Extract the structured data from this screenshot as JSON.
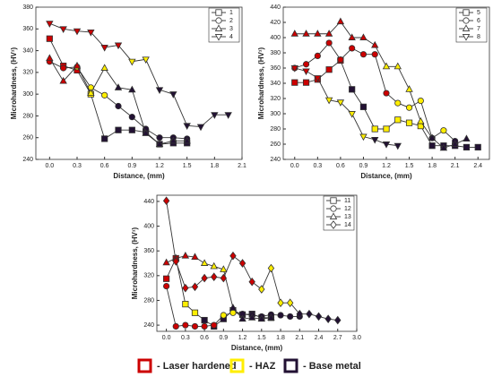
{
  "chart_data": [
    {
      "type": "line",
      "xlabel": "Distance, (mm)",
      "ylabel": "Microhardness, (HV¹)",
      "xlim": [
        -0.15,
        2.1
      ],
      "ylim": [
        240,
        380
      ],
      "xticks": [
        {
          "value": 0,
          "label": "0.0"
        },
        0.3,
        0.6,
        0.9,
        1.2,
        1.5,
        1.8,
        2.1
      ],
      "yticks": [
        240,
        260,
        280,
        300,
        320,
        340,
        360,
        380
      ],
      "legend": "upper right",
      "x": [
        0,
        0.15,
        0.3,
        0.45,
        0.6,
        0.75,
        0.9,
        1.05,
        1.2,
        1.35,
        1.5,
        1.65,
        1.8,
        1.95
      ],
      "series": [
        {
          "name": "1",
          "marker": "square",
          "color": "#333",
          "values": [
            351,
            326,
            322,
            300,
            259,
            267,
            267,
            265,
            254,
            255,
            255,
            null,
            null,
            null
          ],
          "marker_colors": [
            "#c00",
            "#c00",
            "#c00",
            "#fe0",
            "#213",
            "#213",
            "#213",
            "#213",
            "#213",
            "#213",
            "#213",
            null,
            null,
            null
          ]
        },
        {
          "name": "2",
          "marker": "circle",
          "color": "#333",
          "values": [
            330,
            324,
            325,
            306,
            299,
            289,
            279,
            268,
            260,
            260,
            259,
            null,
            null,
            null
          ],
          "marker_colors": [
            "#c00",
            "#c00",
            "#fe0",
            "#fe0",
            "#fe0",
            "#213",
            "#213",
            "#213",
            "#213",
            "#213",
            "#213",
            null,
            null,
            null
          ]
        },
        {
          "name": "3",
          "marker": "triangle-up",
          "color": "#333",
          "values": [
            333,
            312,
            326,
            301,
            324,
            306,
            304,
            264,
            254,
            257,
            257,
            null,
            null,
            null
          ],
          "marker_colors": [
            "#c00",
            "#c00",
            "#c00",
            "#fe0",
            "#fe0",
            "#213",
            "#213",
            "#213",
            "#213",
            "#213",
            "#213",
            null,
            null,
            null
          ]
        },
        {
          "name": "4",
          "marker": "triangle-down",
          "color": "#333",
          "values": [
            365,
            360,
            358,
            357,
            343,
            345,
            330,
            332,
            304,
            300,
            271,
            270,
            281,
            281
          ],
          "marker_colors": [
            "#c00",
            "#c00",
            "#c00",
            "#c00",
            "#c00",
            "#c00",
            "#fe0",
            "#fe0",
            "#213",
            "#213",
            "#213",
            "#213",
            "#213",
            "#213"
          ]
        }
      ]
    },
    {
      "type": "line",
      "xlabel": "Distance, (mm)",
      "ylabel": "Microhardness, (HV¹)",
      "xlim": [
        -0.15,
        2.55
      ],
      "ylim": [
        240,
        440
      ],
      "xticks": [
        {
          "value": 0,
          "label": "0.0"
        },
        0.3,
        0.6,
        0.9,
        1.2,
        1.5,
        1.8,
        2.1,
        2.4
      ],
      "yticks": [
        240,
        260,
        280,
        300,
        320,
        340,
        360,
        380,
        400,
        420,
        440
      ],
      "legend": "upper right",
      "x": [
        0,
        0.15,
        0.3,
        0.45,
        0.6,
        0.75,
        0.9,
        1.05,
        1.2,
        1.35,
        1.5,
        1.65,
        1.8,
        1.95,
        2.1,
        2.25,
        2.4
      ],
      "series": [
        {
          "name": "5",
          "marker": "square",
          "color": "#333",
          "values": [
            341,
            341,
            345,
            358,
            370,
            332,
            309,
            280,
            280,
            292,
            288,
            284,
            258,
            258,
            258,
            256,
            256
          ],
          "marker_colors": [
            "#c00",
            "#c00",
            "#c00",
            "#c00",
            "#c00",
            "#213",
            "#213",
            "#fe0",
            "#fe0",
            "#fe0",
            "#fe0",
            "#fe0",
            "#213",
            "#213",
            "#213",
            "#213",
            "#213"
          ]
        },
        {
          "name": "6",
          "marker": "circle",
          "color": "#333",
          "values": [
            360,
            365,
            376,
            393,
            371,
            386,
            378,
            378,
            327,
            314,
            308,
            317,
            268,
            278,
            264,
            null,
            null
          ],
          "marker_colors": [
            "#c00",
            "#c00",
            "#c00",
            "#c00",
            "#c00",
            "#c00",
            "#c00",
            "#c00",
            "#c00",
            "#fe0",
            "#fe0",
            "#fe0",
            "#213",
            "#fe0",
            "#213",
            null,
            null
          ]
        },
        {
          "name": "7",
          "marker": "triangle-up",
          "color": "#333",
          "values": [
            405,
            405,
            405,
            405,
            421,
            400,
            400,
            390,
            362,
            362,
            332,
            290,
            268,
            255,
            260,
            267,
            null
          ],
          "marker_colors": [
            "#c00",
            "#c00",
            "#c00",
            "#c00",
            "#c00",
            "#c00",
            "#c00",
            "#c00",
            "#fe0",
            "#fe0",
            "#fe0",
            "#fe0",
            "#213",
            "#213",
            "#213",
            "#213",
            null
          ]
        },
        {
          "name": "8",
          "marker": "triangle-down",
          "color": "#333",
          "values": [
            360,
            356,
            347,
            318,
            315,
            300,
            270,
            266,
            260,
            258,
            null,
            null,
            null,
            null,
            null,
            null,
            null
          ],
          "marker_colors": [
            "#c00",
            "#c00",
            "#c00",
            "#fe0",
            "#fe0",
            "#fe0",
            "#fe0",
            "#213",
            "#213",
            "#213",
            null,
            null,
            null,
            null,
            null,
            null,
            null
          ]
        }
      ]
    },
    {
      "type": "line",
      "xlabel": "Distance, (mm)",
      "ylabel": "Microhardness, (HV¹)",
      "xlim": [
        -0.15,
        3.0
      ],
      "ylim": [
        230,
        450
      ],
      "xticks": [
        {
          "value": 0,
          "label": "0.0"
        },
        0.3,
        0.6,
        0.9,
        1.2,
        1.5,
        1.8,
        2.1,
        2.4,
        2.7,
        {
          "value": 3,
          "label": "3.0"
        }
      ],
      "yticks": [
        240,
        280,
        320,
        360,
        400,
        440
      ],
      "legend": "upper right",
      "x": [
        0,
        0.15,
        0.3,
        0.45,
        0.6,
        0.75,
        0.9,
        1.05,
        1.2,
        1.35,
        1.5,
        1.65,
        1.8,
        1.95,
        2.1,
        2.25,
        2.4,
        2.55,
        2.7
      ],
      "series": [
        {
          "name": "11",
          "marker": "square",
          "color": "#333",
          "values": [
            315,
            348,
            274,
            260,
            248,
            238,
            250,
            264,
            257,
            258,
            252,
            252,
            null,
            null,
            null,
            null,
            null,
            null,
            null
          ],
          "marker_colors": [
            "#c00",
            "#c00",
            "#fe0",
            "#fe0",
            "#213",
            "#213",
            "#213",
            "#213",
            "#213",
            "#213",
            "#213",
            "#213",
            null,
            null,
            null,
            null,
            null,
            null,
            null
          ]
        },
        {
          "name": "12",
          "marker": "circle",
          "color": "#333",
          "values": [
            303,
            238,
            240,
            238,
            238,
            240,
            256,
            260,
            258,
            256,
            254,
            257,
            256,
            254,
            254,
            null,
            null,
            null,
            null
          ],
          "marker_colors": [
            "#c00",
            "#c00",
            "#c00",
            "#c00",
            "#c00",
            "#c00",
            "#fe0",
            "#fe0",
            "#213",
            "#213",
            "#213",
            "#213",
            "#213",
            "#213",
            "#213",
            null,
            null,
            null,
            null
          ]
        },
        {
          "name": "13",
          "marker": "triangle-up",
          "color": "#333",
          "values": [
            341,
            348,
            352,
            350,
            340,
            335,
            330,
            268,
            250,
            252,
            250,
            252,
            null,
            null,
            null,
            null,
            null,
            null,
            null
          ],
          "marker_colors": [
            "#c00",
            "#c00",
            "#c00",
            "#c00",
            "#fe0",
            "#fe0",
            "#fe0",
            "#213",
            "#213",
            "#213",
            "#213",
            "#213",
            null,
            null,
            null,
            null,
            null,
            null,
            null
          ]
        },
        {
          "name": "14",
          "marker": "diamond",
          "color": "#333",
          "values": [
            441,
            343,
            300,
            302,
            316,
            318,
            316,
            352,
            340,
            310,
            298,
            332,
            276,
            276,
            258,
            258,
            254,
            250,
            248
          ],
          "marker_colors": [
            "#c00",
            "#c00",
            "#c00",
            "#c00",
            "#c00",
            "#c00",
            "#c00",
            "#c00",
            "#c00",
            "#c00",
            "#fe0",
            "#fe0",
            "#fe0",
            "#fe0",
            "#213",
            "#213",
            "#213",
            "#213",
            "#213"
          ]
        }
      ]
    }
  ],
  "zone_legend": [
    {
      "label": "- Laser hardened",
      "color": "#c00"
    },
    {
      "label": "- HAZ",
      "color": "#fe0"
    },
    {
      "label": "- Base metal",
      "color": "#213"
    }
  ]
}
